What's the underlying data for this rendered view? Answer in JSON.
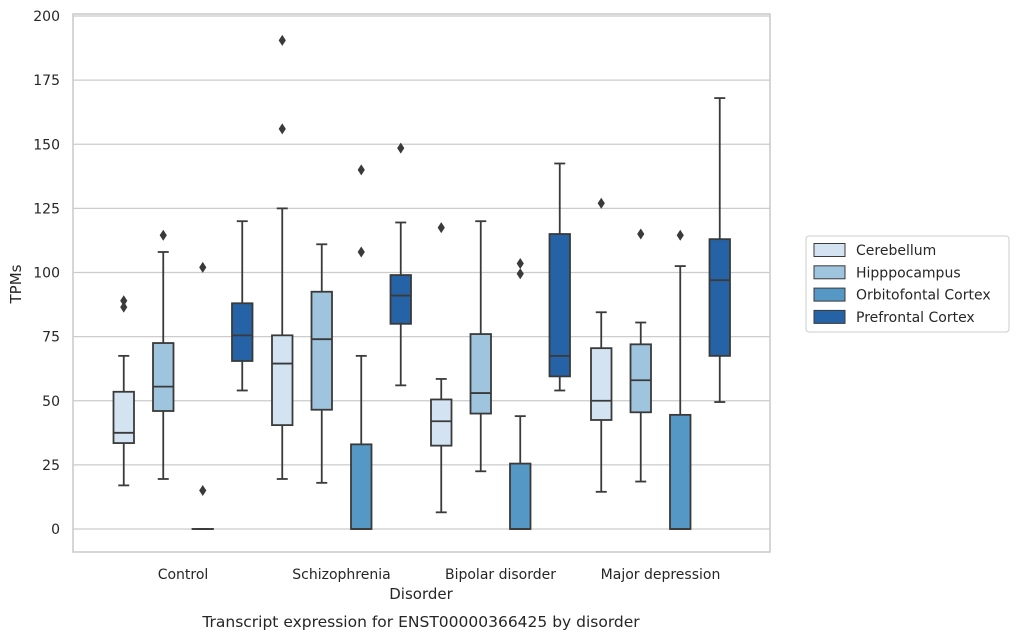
{
  "chart_data": {
    "type": "box",
    "caption": "Transcript expression for ENST00000366425 by disorder",
    "xlabel": "Disorder",
    "ylabel": "TPMs",
    "ylim": [
      -9,
      201
    ],
    "yticks": [
      0,
      25,
      50,
      75,
      100,
      125,
      150,
      175,
      200
    ],
    "grid": "y",
    "legend_position": "right",
    "categories": [
      "Control",
      "Schizophrenia",
      "Bipolar disorder",
      "Major depression"
    ],
    "series": [
      {
        "name": "Cerebellum",
        "color": "#d3e3f1",
        "boxes": [
          {
            "whislo": 17,
            "q1": 33.5,
            "med": 37.5,
            "q3": 53.5,
            "whishi": 67.5,
            "fliers": [
              86.5,
              89
            ]
          },
          {
            "whislo": 19.5,
            "q1": 40.5,
            "med": 64.5,
            "q3": 75.5,
            "whishi": 125,
            "fliers": [
              156,
              190.5
            ]
          },
          {
            "whislo": 6.5,
            "q1": 32.5,
            "med": 42,
            "q3": 50.5,
            "whishi": 58.5,
            "fliers": [
              117.5
            ]
          },
          {
            "whislo": 14.5,
            "q1": 42.5,
            "med": 50,
            "q3": 70.5,
            "whishi": 84.5,
            "fliers": [
              127
            ]
          }
        ]
      },
      {
        "name": "Hipppocampus",
        "color": "#9ec4de",
        "boxes": [
          {
            "whislo": 19.5,
            "q1": 46,
            "med": 55.5,
            "q3": 72.5,
            "whishi": 108,
            "fliers": [
              114.5
            ]
          },
          {
            "whislo": 18,
            "q1": 46.5,
            "med": 74,
            "q3": 92.5,
            "whishi": 111,
            "fliers": []
          },
          {
            "whislo": 22.5,
            "q1": 45,
            "med": 53,
            "q3": 76,
            "whishi": 120,
            "fliers": []
          },
          {
            "whislo": 18.5,
            "q1": 45.5,
            "med": 58,
            "q3": 72,
            "whishi": 80.5,
            "fliers": [
              115
            ]
          }
        ]
      },
      {
        "name": "Orbitofontal Cortex",
        "color": "#5598c5",
        "boxes": [
          {
            "whislo": 0,
            "q1": 0,
            "med": 0,
            "q3": 0,
            "whishi": 0,
            "fliers": [
              15,
              102
            ]
          },
          {
            "whislo": 0,
            "q1": 0,
            "med": 0,
            "q3": 33,
            "whishi": 67.5,
            "fliers": [
              108,
              140
            ]
          },
          {
            "whislo": 0,
            "q1": 0,
            "med": 0,
            "q3": 25.5,
            "whishi": 44,
            "fliers": [
              99.5,
              103.5
            ]
          },
          {
            "whislo": 0,
            "q1": 0,
            "med": 0,
            "q3": 44.5,
            "whishi": 102.5,
            "fliers": [
              114.5
            ]
          }
        ]
      },
      {
        "name": "Prefrontal Cortex",
        "color": "#2563a6",
        "boxes": [
          {
            "whislo": 54,
            "q1": 65.5,
            "med": 75.5,
            "q3": 88,
            "whishi": 120,
            "fliers": []
          },
          {
            "whislo": 56,
            "q1": 80,
            "med": 91,
            "q3": 99,
            "whishi": 119.5,
            "fliers": [
              148.5
            ]
          },
          {
            "whislo": 54,
            "q1": 59.5,
            "med": 67.5,
            "q3": 115,
            "whishi": 142.5,
            "fliers": []
          },
          {
            "whislo": 49.5,
            "q1": 67.5,
            "med": 97,
            "q3": 113,
            "whishi": 168,
            "fliers": []
          }
        ]
      }
    ]
  }
}
